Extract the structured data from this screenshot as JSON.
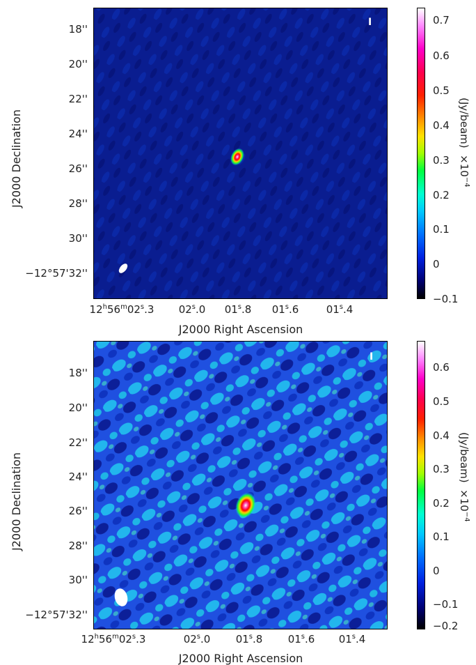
{
  "panels": [
    {
      "ylabel": "J2000 Declination",
      "xlabel": "J2000 Right Ascension",
      "yticks": [
        "18''",
        "20''",
        "22''",
        "24''",
        "26''",
        "28''",
        "30''",
        "−12°57'32''"
      ],
      "xticks": [
        {
          "pre": "12",
          "h": "h",
          "mid": "56",
          "m": "m",
          "post": "02",
          "s": "s",
          "tail": ".3"
        },
        {
          "pre": "",
          "h": "",
          "mid": "",
          "m": "",
          "post": "02",
          "s": "s",
          "tail": ".0"
        },
        {
          "pre": "",
          "h": "",
          "mid": "",
          "m": "",
          "post": "01",
          "s": "s",
          "tail": ".8"
        },
        {
          "pre": "",
          "h": "",
          "mid": "",
          "m": "",
          "post": "01",
          "s": "s",
          "tail": ".6"
        },
        {
          "pre": "",
          "h": "",
          "mid": "",
          "m": "",
          "post": "01",
          "s": "s",
          "tail": ".4"
        }
      ],
      "stokes": "I",
      "colorbar_unit": "(Jy/beam)",
      "colorbar_scale": "×10",
      "colorbar_exp": "−4",
      "colorbar_ticks": [
        "0.7",
        "0.6",
        "0.5",
        "0.4",
        "0.3",
        "0.2",
        "0.1",
        "0",
        "−0.1"
      ]
    },
    {
      "ylabel": "J2000 Declination",
      "xlabel": "J2000 Right Ascension",
      "yticks": [
        "18''",
        "20''",
        "22''",
        "24''",
        "26''",
        "28''",
        "30''",
        "−12°57'32''"
      ],
      "xticks": [
        {
          "pre": "12",
          "h": "h",
          "mid": "56",
          "m": "m",
          "post": "02",
          "s": "s",
          "tail": ".3"
        },
        {
          "pre": "",
          "h": "",
          "mid": "",
          "m": "",
          "post": "02",
          "s": "s",
          "tail": ".0"
        },
        {
          "pre": "",
          "h": "",
          "mid": "",
          "m": "",
          "post": "01",
          "s": "s",
          "tail": ".8"
        },
        {
          "pre": "",
          "h": "",
          "mid": "",
          "m": "",
          "post": "01",
          "s": "s",
          "tail": ".6"
        },
        {
          "pre": "",
          "h": "",
          "mid": "",
          "m": "",
          "post": "01",
          "s": "s",
          "tail": ".4"
        }
      ],
      "stokes": "I",
      "colorbar_unit": "(Jy/beam)",
      "colorbar_scale": "×10",
      "colorbar_exp": "−4",
      "colorbar_ticks": [
        "0.6",
        "0.5",
        "0.4",
        "0.3",
        "0.2",
        "0.1",
        "0",
        "−0.1",
        "−0.2"
      ]
    }
  ],
  "colors": {
    "map_background_top": "#0a1c8c",
    "map_background_bottom": "#1a3fd0",
    "beam": "#ffffff"
  }
}
